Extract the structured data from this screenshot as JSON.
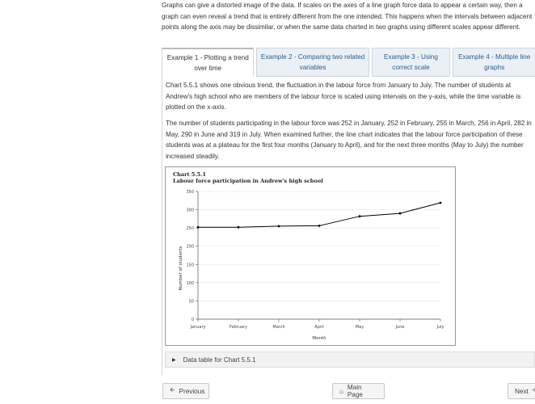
{
  "intro_text": "Graphs can give a distorted image of the data. If scales on the axes of a line graph force data to appear a certain way, then a graph can even reveal a trend that is entirely different from the one intended. This happens when the intervals between adjacent points along the axis may be dissimilar, or when the same data charted in two graphs using different scales appear different.",
  "tabs": [
    {
      "label": "Example 1 - Plotting a trend over time",
      "active": true
    },
    {
      "label": "Example 2 - Comparing two related variables",
      "active": false
    },
    {
      "label": "Example 3 - Using correct scale",
      "active": false
    },
    {
      "label": "Example 4 - Multiple line graphs",
      "active": false
    }
  ],
  "paragraph1": "Chart 5.5.1 shows one obvious trend, the fluctuation in the labour force from January to July. The number of students at Andrew's high school who are members of the labour force is scaled using intervals on the y-axis, while the time variable is plotted on the x-axis.",
  "paragraph2": "The number of students participating in the labour force was 252 in January, 252 in February, 255 in March, 256 in April, 282 in May, 290 in June and 319 in July. When examined further, the line chart indicates that the labour force participation of these students was at a plateau for the first four months (January to April), and for the next three months (May to July) the number increased steadily.",
  "chart_data": {
    "type": "line",
    "title_line1": "Chart 5.5.1",
    "title_line2": "Labour force participation in Andrew's high school",
    "xlabel": "Month",
    "ylabel": "Number of students",
    "categories": [
      "January",
      "February",
      "March",
      "April",
      "May",
      "June",
      "July"
    ],
    "values": [
      252,
      252,
      255,
      256,
      282,
      290,
      319
    ],
    "ylim": [
      0,
      350
    ],
    "yticks": [
      0,
      50,
      100,
      150,
      200,
      250,
      300,
      350
    ],
    "grid": true,
    "line_color": "#000000"
  },
  "data_table_label": "Data table for Chart 5.5.1",
  "nav": {
    "previous": "Previous",
    "main_page": "Main Page",
    "next": "Next"
  }
}
